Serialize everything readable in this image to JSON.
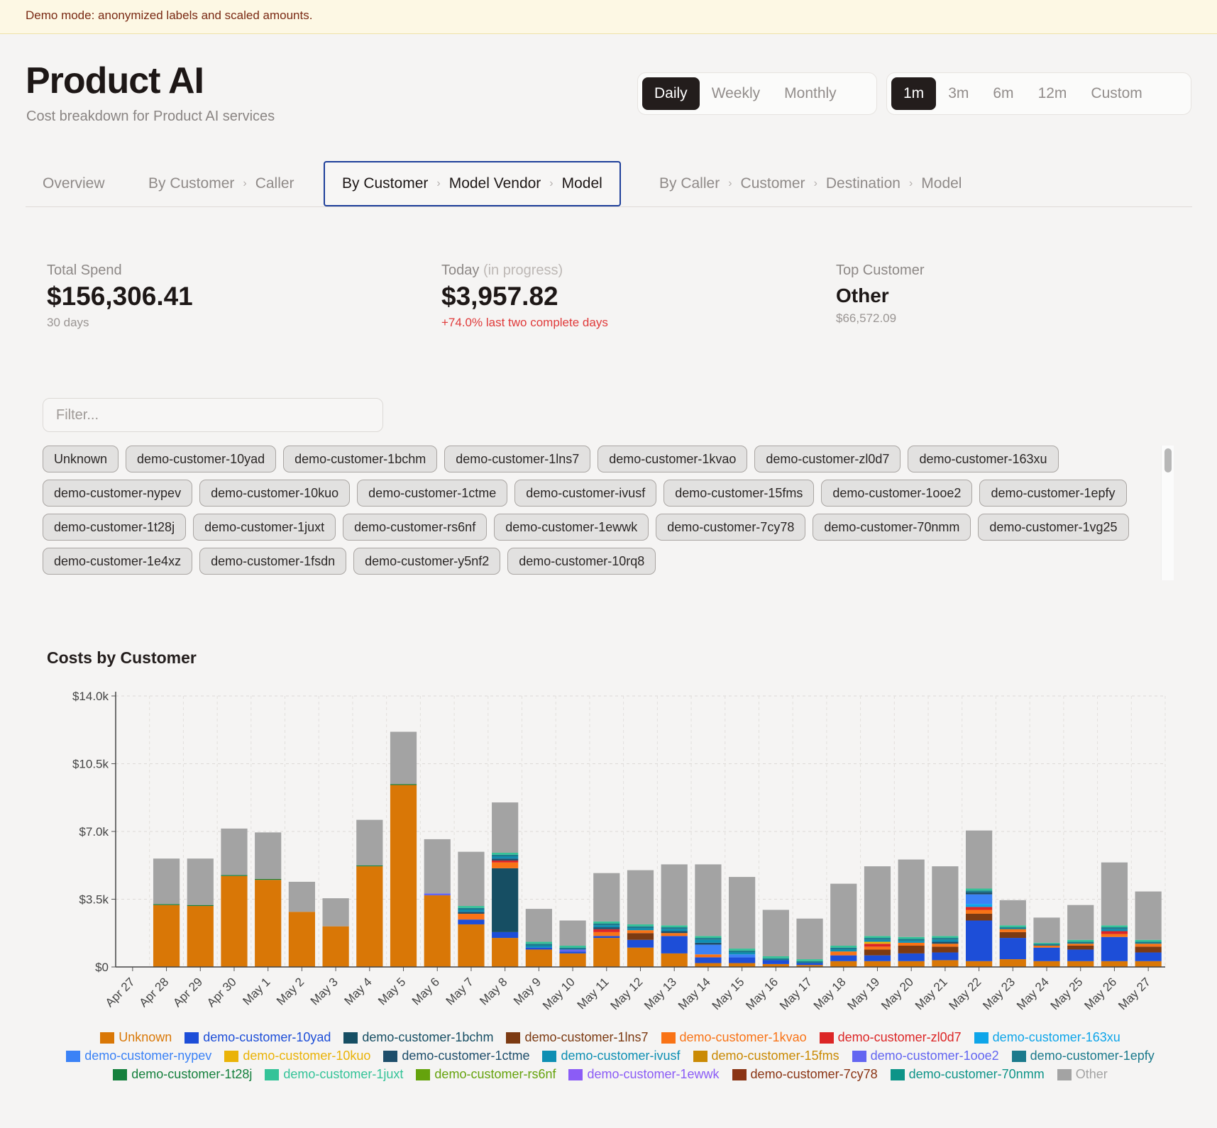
{
  "banner": {
    "text": "Demo mode: anonymized labels and scaled amounts."
  },
  "header": {
    "title": "Product AI",
    "subtitle": "Cost breakdown for Product AI services"
  },
  "granularity": {
    "options": [
      "Daily",
      "Weekly",
      "Monthly"
    ],
    "selected": "Daily"
  },
  "range": {
    "options": [
      "1m",
      "3m",
      "6m",
      "12m",
      "Custom"
    ],
    "selected": "1m"
  },
  "tabs": [
    {
      "parts": [
        "Overview"
      ],
      "active": false
    },
    {
      "parts": [
        "By Customer",
        "Caller"
      ],
      "active": false
    },
    {
      "parts": [
        "By Customer",
        "Model Vendor",
        "Model"
      ],
      "active": true
    },
    {
      "parts": [
        "By Caller",
        "Customer",
        "Destination",
        "Model"
      ],
      "active": false
    }
  ],
  "tab_separator": "›",
  "kpis": {
    "total": {
      "label": "Total Spend",
      "value": "$156,306.41",
      "sub": "30 days"
    },
    "today": {
      "label": "Today",
      "label_muted": "(in progress)",
      "value": "$3,957.82",
      "sub": "+74.0% last two complete days"
    },
    "top": {
      "label": "Top Customer",
      "value": "Other",
      "sub": "$66,572.09"
    }
  },
  "filter": {
    "placeholder": "Filter...",
    "value": ""
  },
  "chips": [
    "Unknown",
    "demo-customer-10yad",
    "demo-customer-1bchm",
    "demo-customer-1lns7",
    "demo-customer-1kvao",
    "demo-customer-zl0d7",
    "demo-customer-163xu",
    "demo-customer-nypev",
    "demo-customer-10kuo",
    "demo-customer-1ctme",
    "demo-customer-ivusf",
    "demo-customer-15fms",
    "demo-customer-1ooe2",
    "demo-customer-1epfy",
    "demo-customer-1t28j",
    "demo-customer-1juxt",
    "demo-customer-rs6nf",
    "demo-customer-1ewwk",
    "demo-customer-7cy78",
    "demo-customer-70nmm",
    "demo-customer-1vg25",
    "demo-customer-1e4xz",
    "demo-customer-1fsdn",
    "demo-customer-y5nf2",
    "demo-customer-10rq8"
  ],
  "chart": {
    "title": "Costs by Customer"
  },
  "chart_data": {
    "type": "bar",
    "stacked": true,
    "title": "Costs by Customer",
    "ylim": [
      0,
      14000
    ],
    "y_ticks": [
      0,
      3500,
      7000,
      10500,
      14000
    ],
    "y_tick_labels": [
      "$0",
      "$3.5k",
      "$7.0k",
      "$10.5k",
      "$14.0k"
    ],
    "grid": true,
    "legend_position": "bottom",
    "categories": [
      "Apr 27",
      "Apr 28",
      "Apr 29",
      "Apr 30",
      "May 1",
      "May 2",
      "May 3",
      "May 4",
      "May 5",
      "May 6",
      "May 7",
      "May 8",
      "May 9",
      "May 10",
      "May 11",
      "May 12",
      "May 13",
      "May 14",
      "May 15",
      "May 16",
      "May 17",
      "May 18",
      "May 19",
      "May 20",
      "May 21",
      "May 22",
      "May 23",
      "May 24",
      "May 25",
      "May 26",
      "May 27"
    ],
    "series": [
      {
        "name": "Unknown",
        "color": "#d97706",
        "values": [
          0,
          3200,
          3150,
          4700,
          4500,
          2850,
          2100,
          5200,
          9400,
          3700,
          2200,
          1500,
          900,
          700,
          1500,
          1000,
          700,
          200,
          200,
          150,
          100,
          300,
          300,
          300,
          350,
          300,
          400,
          300,
          300,
          300,
          300
        ]
      },
      {
        "name": "demo-customer-10yad",
        "color": "#1d4ed8",
        "values": [
          0,
          0,
          0,
          0,
          0,
          0,
          0,
          0,
          0,
          0,
          250,
          300,
          100,
          100,
          100,
          400,
          900,
          300,
          300,
          200,
          100,
          300,
          300,
          400,
          400,
          2100,
          1100,
          700,
          600,
          1250,
          450
        ]
      },
      {
        "name": "demo-customer-1bchm",
        "color": "#164e63",
        "values": [
          0,
          0,
          0,
          0,
          0,
          0,
          0,
          0,
          0,
          0,
          0,
          3300,
          0,
          0,
          0,
          0,
          0,
          0,
          0,
          0,
          0,
          0,
          0,
          0,
          0,
          0,
          0,
          0,
          0,
          0,
          0
        ]
      },
      {
        "name": "demo-customer-1lns7",
        "color": "#7c3a12",
        "values": [
          0,
          0,
          0,
          0,
          0,
          0,
          0,
          0,
          0,
          0,
          0,
          0,
          0,
          0,
          0,
          350,
          0,
          0,
          0,
          0,
          0,
          0,
          300,
          400,
          300,
          350,
          300,
          0,
          200,
          0,
          300
        ]
      },
      {
        "name": "demo-customer-1kvao",
        "color": "#f97316",
        "values": [
          0,
          0,
          0,
          0,
          0,
          0,
          0,
          0,
          0,
          0,
          300,
          300,
          0,
          0,
          200,
          150,
          150,
          150,
          0,
          0,
          0,
          200,
          150,
          150,
          150,
          200,
          150,
          100,
          100,
          150,
          150
        ]
      },
      {
        "name": "demo-customer-zl0d7",
        "color": "#dc2626",
        "values": [
          0,
          0,
          0,
          0,
          0,
          0,
          0,
          0,
          0,
          0,
          0,
          100,
          0,
          0,
          150,
          0,
          0,
          0,
          0,
          0,
          0,
          0,
          150,
          0,
          0,
          150,
          0,
          0,
          0,
          150,
          0
        ]
      },
      {
        "name": "demo-customer-163xu",
        "color": "#0ea5e9",
        "values": [
          0,
          0,
          0,
          0,
          0,
          0,
          0,
          0,
          0,
          0,
          0,
          0,
          0,
          0,
          0,
          0,
          0,
          0,
          0,
          0,
          0,
          0,
          0,
          0,
          0,
          150,
          0,
          0,
          0,
          0,
          0
        ]
      },
      {
        "name": "demo-customer-nypev",
        "color": "#3b82f6",
        "values": [
          0,
          0,
          0,
          0,
          0,
          0,
          0,
          0,
          0,
          0,
          0,
          0,
          0,
          0,
          0,
          0,
          0,
          500,
          150,
          0,
          0,
          0,
          0,
          0,
          0,
          500,
          0,
          0,
          0,
          0,
          0
        ]
      },
      {
        "name": "demo-customer-10kuo",
        "color": "#eab308",
        "values": [
          0,
          0,
          0,
          0,
          0,
          0,
          0,
          0,
          0,
          0,
          0,
          0,
          0,
          0,
          0,
          0,
          0,
          0,
          0,
          0,
          0,
          0,
          100,
          0,
          0,
          0,
          0,
          0,
          0,
          0,
          0
        ]
      },
      {
        "name": "demo-customer-1ctme",
        "color": "#1e4e6b",
        "values": [
          0,
          0,
          0,
          0,
          0,
          0,
          0,
          0,
          0,
          0,
          100,
          100,
          0,
          0,
          100,
          0,
          100,
          100,
          0,
          0,
          0,
          0,
          0,
          0,
          100,
          100,
          0,
          0,
          0,
          0,
          0
        ]
      },
      {
        "name": "demo-customer-ivusf",
        "color": "#0e8fb3",
        "values": [
          0,
          0,
          0,
          0,
          0,
          0,
          0,
          0,
          0,
          0,
          100,
          100,
          100,
          0,
          100,
          100,
          100,
          150,
          100,
          0,
          0,
          100,
          100,
          100,
          100,
          0,
          0,
          0,
          0,
          100,
          0
        ]
      },
      {
        "name": "demo-customer-15fms",
        "color": "#ca8a04",
        "values": [
          0,
          0,
          0,
          0,
          0,
          0,
          0,
          0,
          0,
          0,
          0,
          0,
          0,
          0,
          0,
          0,
          0,
          0,
          0,
          0,
          0,
          0,
          0,
          0,
          0,
          0,
          0,
          0,
          0,
          0,
          0
        ]
      },
      {
        "name": "demo-customer-1ooe2",
        "color": "#6366f1",
        "values": [
          0,
          0,
          0,
          0,
          0,
          0,
          0,
          0,
          0,
          100,
          0,
          0,
          0,
          100,
          0,
          0,
          0,
          0,
          0,
          0,
          0,
          0,
          0,
          0,
          0,
          0,
          0,
          0,
          0,
          0,
          0
        ]
      },
      {
        "name": "demo-customer-1epfy",
        "color": "#1c7a8c",
        "values": [
          0,
          0,
          0,
          0,
          0,
          0,
          0,
          0,
          0,
          0,
          100,
          100,
          100,
          100,
          100,
          100,
          100,
          100,
          100,
          100,
          100,
          100,
          100,
          100,
          100,
          100,
          100,
          100,
          100,
          100,
          100
        ]
      },
      {
        "name": "demo-customer-1t28j",
        "color": "#15803d",
        "values": [
          0,
          50,
          50,
          50,
          50,
          0,
          0,
          50,
          50,
          0,
          0,
          0,
          0,
          0,
          0,
          0,
          0,
          0,
          0,
          0,
          0,
          0,
          0,
          0,
          0,
          0,
          0,
          0,
          0,
          0,
          0
        ]
      },
      {
        "name": "demo-customer-1juxt",
        "color": "#34c398",
        "values": [
          0,
          0,
          0,
          0,
          0,
          0,
          0,
          0,
          0,
          0,
          100,
          100,
          100,
          100,
          100,
          100,
          100,
          100,
          100,
          100,
          100,
          100,
          100,
          100,
          100,
          100,
          100,
          50,
          100,
          100,
          100
        ]
      },
      {
        "name": "demo-customer-rs6nf",
        "color": "#65a30d",
        "values": [
          0,
          0,
          0,
          0,
          0,
          0,
          0,
          0,
          0,
          0,
          0,
          0,
          0,
          0,
          0,
          0,
          0,
          0,
          0,
          0,
          0,
          0,
          0,
          0,
          0,
          0,
          0,
          0,
          0,
          0,
          0
        ]
      },
      {
        "name": "demo-customer-1ewwk",
        "color": "#8b5cf6",
        "values": [
          0,
          0,
          0,
          0,
          0,
          0,
          0,
          0,
          0,
          0,
          0,
          0,
          0,
          0,
          0,
          0,
          0,
          0,
          0,
          0,
          0,
          0,
          0,
          0,
          0,
          0,
          0,
          0,
          0,
          0,
          0
        ]
      },
      {
        "name": "demo-customer-7cy78",
        "color": "#8a3414",
        "values": [
          0,
          0,
          0,
          0,
          0,
          0,
          0,
          0,
          0,
          0,
          0,
          0,
          0,
          0,
          0,
          0,
          0,
          0,
          0,
          0,
          0,
          0,
          0,
          0,
          0,
          0,
          0,
          0,
          0,
          0,
          0
        ]
      },
      {
        "name": "demo-customer-70nmm",
        "color": "#0d9488",
        "values": [
          0,
          0,
          0,
          0,
          0,
          0,
          0,
          0,
          0,
          0,
          0,
          0,
          0,
          0,
          0,
          0,
          0,
          0,
          0,
          0,
          0,
          0,
          0,
          0,
          0,
          0,
          0,
          0,
          0,
          0,
          0
        ]
      },
      {
        "name": "Other",
        "color": "#a3a3a3",
        "values": [
          0,
          2350,
          2400,
          2400,
          2400,
          1550,
          1450,
          2350,
          2700,
          2800,
          2800,
          2600,
          1700,
          1300,
          2500,
          2800,
          3150,
          3700,
          3700,
          2400,
          2100,
          3200,
          3600,
          4000,
          3600,
          3000,
          1300,
          1300,
          1800,
          3250,
          2500
        ]
      }
    ]
  }
}
